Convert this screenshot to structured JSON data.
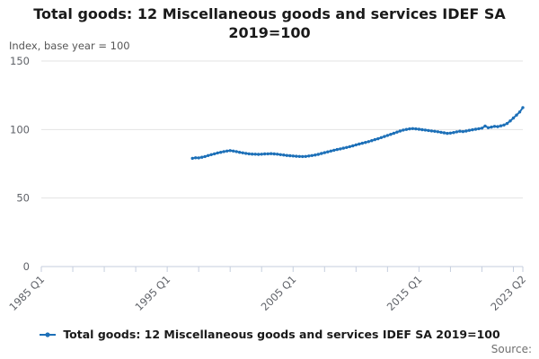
{
  "header": {
    "title_line1": "Total goods: 12 Miscellaneous goods and services IDEF SA",
    "title_line2": "2019=100",
    "unit_label": "Index, base year = 100"
  },
  "legend": {
    "label": "Total goods: 12 Miscellaneous goods and services IDEF SA 2019=100"
  },
  "footer": {
    "source_label": "Source:"
  },
  "chart_data": {
    "type": "line",
    "title": "Total goods: 12 Miscellaneous goods and services IDEF SA 2019=100",
    "ylabel": "Index, base year = 100",
    "ylim": [
      0,
      150
    ],
    "y_ticks": [
      0,
      50,
      100,
      150
    ],
    "grid": "horizontal-only",
    "legend_position": "bottom-center",
    "colors": {
      "series": "#1d70b8",
      "grid": "#e3e3e3",
      "axis": "#c5cede",
      "tick_text": "#5f6268"
    },
    "x_axis": {
      "start": "1985 Q1",
      "end": "2023 Q2",
      "total_quarters": 153,
      "minor_tick_every_quarters": 10,
      "major_ticks": [
        {
          "label": "1985 Q1",
          "quarter": 0
        },
        {
          "label": "1995 Q1",
          "quarter": 40
        },
        {
          "label": "2005 Q1",
          "quarter": 80
        },
        {
          "label": "2015 Q1",
          "quarter": 120
        },
        {
          "label": "2023 Q2",
          "quarter": 153
        }
      ]
    },
    "series": [
      {
        "name": "Total goods: 12 Miscellaneous goods and services IDEF SA 2019=100",
        "color": "#1d70b8",
        "start": "1997 Q1",
        "start_quarter_index": 48,
        "frequency": "quarterly",
        "values": [
          79.0,
          79.4,
          79.3,
          79.8,
          80.3,
          81.0,
          81.7,
          82.3,
          82.9,
          83.4,
          83.9,
          84.3,
          84.6,
          84.3,
          83.9,
          83.4,
          83.0,
          82.6,
          82.3,
          82.1,
          82.0,
          81.9,
          82.0,
          82.2,
          82.3,
          82.4,
          82.2,
          82.0,
          81.7,
          81.4,
          81.1,
          80.9,
          80.7,
          80.5,
          80.4,
          80.3,
          80.4,
          80.7,
          81.0,
          81.4,
          81.9,
          82.5,
          83.1,
          83.7,
          84.3,
          84.9,
          85.4,
          85.9,
          86.4,
          86.9,
          87.5,
          88.1,
          88.8,
          89.4,
          90.0,
          90.6,
          91.2,
          91.9,
          92.6,
          93.3,
          94.1,
          94.9,
          95.7,
          96.5,
          97.3,
          98.1,
          98.9,
          99.6,
          100.1,
          100.5,
          100.7,
          100.5,
          100.2,
          99.9,
          99.6,
          99.3,
          99.0,
          98.7,
          98.4,
          98.0,
          97.6,
          97.2,
          97.4,
          97.8,
          98.3,
          98.8,
          98.5,
          98.9,
          99.4,
          99.8,
          100.2,
          100.6,
          101.0,
          102.6,
          101.3,
          101.8,
          102.3,
          102.1,
          102.7,
          103.3,
          104.4,
          106.3,
          108.4,
          110.6,
          112.8,
          116.0
        ]
      }
    ]
  }
}
